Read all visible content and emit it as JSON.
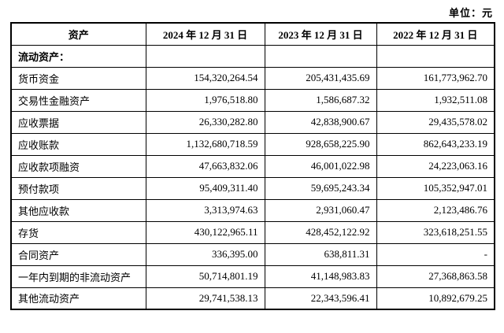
{
  "unit_note": "单位：元",
  "table": {
    "headers": [
      "资产",
      "2024 年 12 月 31 日",
      "2023 年 12 月 31 日",
      "2022 年 12 月 31 日"
    ],
    "rows": [
      {
        "label": "流动资产：",
        "bold": true,
        "values": [
          "",
          "",
          ""
        ]
      },
      {
        "label": "货币资金",
        "bold": false,
        "values": [
          "154,320,264.54",
          "205,431,435.69",
          "161,773,962.70"
        ]
      },
      {
        "label": "交易性金融资产",
        "bold": false,
        "values": [
          "1,976,518.80",
          "1,586,687.32",
          "1,932,511.08"
        ]
      },
      {
        "label": "应收票据",
        "bold": false,
        "values": [
          "26,330,282.80",
          "42,838,900.67",
          "29,435,578.02"
        ]
      },
      {
        "label": "应收账款",
        "bold": false,
        "values": [
          "1,132,680,718.59",
          "928,658,225.90",
          "862,643,233.19"
        ]
      },
      {
        "label": "应收款项融资",
        "bold": false,
        "values": [
          "47,663,832.06",
          "46,001,022.98",
          "24,223,063.16"
        ]
      },
      {
        "label": "预付款项",
        "bold": false,
        "values": [
          "95,409,311.40",
          "59,695,243.34",
          "105,352,947.01"
        ]
      },
      {
        "label": "其他应收款",
        "bold": false,
        "values": [
          "3,313,974.63",
          "2,931,060.47",
          "2,123,486.76"
        ]
      },
      {
        "label": "存货",
        "bold": false,
        "values": [
          "430,122,965.11",
          "428,452,122.92",
          "323,618,251.55"
        ]
      },
      {
        "label": "合同资产",
        "bold": false,
        "values": [
          "336,395.00",
          "638,811.31",
          "-"
        ]
      },
      {
        "label": "一年内到期的非流动资产",
        "bold": false,
        "values": [
          "50,714,801.19",
          "41,148,983.83",
          "27,368,863.58"
        ]
      },
      {
        "label": "其他流动资产",
        "bold": false,
        "values": [
          "29,741,538.13",
          "22,343,596.41",
          "10,892,679.25"
        ]
      }
    ]
  }
}
